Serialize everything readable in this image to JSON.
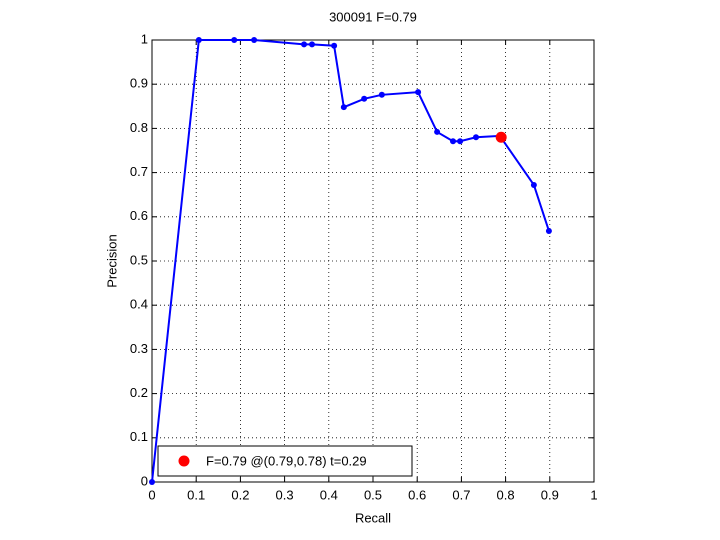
{
  "chart_data": {
    "type": "line",
    "title": "300091 F=0.79",
    "x_label": "Recall",
    "y_label": "Precision",
    "xlim": [
      0,
      1
    ],
    "ylim": [
      0,
      1
    ],
    "xticks": [
      0,
      0.1,
      0.2,
      0.3,
      0.4,
      0.5,
      0.6,
      0.7,
      0.8,
      0.9,
      1
    ],
    "yticks": [
      0,
      0.1,
      0.2,
      0.3,
      0.4,
      0.5,
      0.6,
      0.7,
      0.8,
      0.9,
      1
    ],
    "grid": true,
    "legend": "lower left",
    "series": [
      {
        "color": "#0000ff",
        "x": [
          0,
          0.106,
          0.186,
          0.231,
          0.344,
          0.362,
          0.412,
          0.434,
          0.48,
          0.52,
          0.602,
          0.645,
          0.681,
          0.697,
          0.733,
          0.787,
          0.864,
          0.898
        ],
        "values": [
          0,
          1,
          1,
          1,
          0.99,
          0.99,
          0.987,
          0.848,
          0.867,
          0.876,
          0.882,
          0.792,
          0.771,
          0.771,
          0.78,
          0.783,
          0.672,
          0.568
        ]
      },
      {
        "name": "F=0.79 @(0.79,0.78) t=0.29",
        "color": "#ff0000",
        "x": [
          0.79
        ],
        "values": [
          0.78
        ]
      }
    ]
  }
}
